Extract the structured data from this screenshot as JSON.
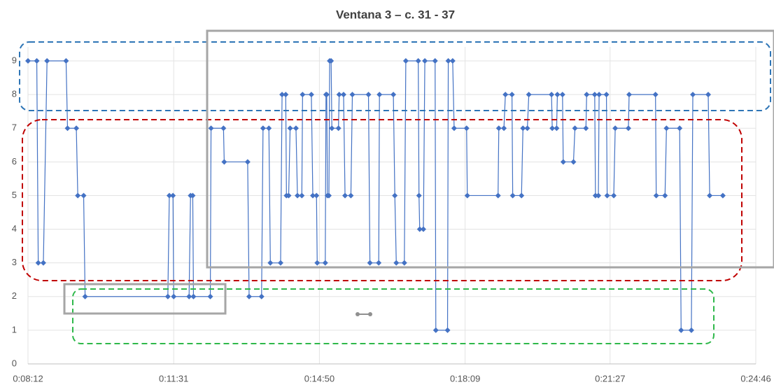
{
  "chart_data": {
    "type": "line",
    "title": "Ventana 3 – c. 31 - 37",
    "color": "#4472c4",
    "x": [
      492,
      504,
      506,
      513,
      518,
      544,
      546,
      558,
      560,
      568,
      570,
      683,
      685,
      690,
      691,
      712,
      714,
      717,
      718,
      741,
      742,
      759,
      760,
      792,
      794,
      811,
      813,
      821,
      823,
      837,
      839,
      844,
      845,
      848,
      850,
      858,
      860,
      866,
      867,
      879,
      881,
      886,
      887,
      898,
      899,
      900,
      901,
      903,
      904,
      906,
      907,
      916,
      917,
      923,
      925,
      933,
      935,
      957,
      959,
      971,
      972,
      991,
      993,
      995,
      1006,
      1008,
      1025,
      1026,
      1027,
      1032,
      1034,
      1048,
      1049,
      1065,
      1066,
      1072,
      1074,
      1091,
      1092,
      1134,
      1135,
      1142,
      1144,
      1153,
      1154,
      1166,
      1168,
      1174,
      1176,
      1207,
      1208,
      1214,
      1215,
      1222,
      1223,
      1237,
      1239,
      1254,
      1255,
      1266,
      1267,
      1271,
      1272,
      1282,
      1283,
      1292,
      1294,
      1312,
      1313,
      1349,
      1350,
      1362,
      1364,
      1382,
      1384,
      1398,
      1400,
      1421,
      1423,
      1441
    ],
    "values": [
      9,
      9,
      3,
      3,
      9,
      9,
      7,
      7,
      5,
      5,
      2,
      2,
      5,
      5,
      2,
      2,
      5,
      5,
      2,
      2,
      7,
      7,
      6,
      6,
      2,
      2,
      7,
      7,
      3,
      3,
      8,
      8,
      5,
      5,
      7,
      7,
      5,
      5,
      8,
      8,
      5,
      5,
      3,
      3,
      8,
      8,
      5,
      5,
      9,
      9,
      7,
      7,
      8,
      8,
      5,
      5,
      8,
      8,
      3,
      3,
      8,
      8,
      5,
      3,
      3,
      9,
      9,
      5,
      4,
      4,
      9,
      9,
      1,
      1,
      9,
      9,
      7,
      7,
      5,
      5,
      7,
      7,
      8,
      8,
      5,
      5,
      7,
      7,
      8,
      8,
      7,
      7,
      8,
      8,
      6,
      6,
      7,
      7,
      8,
      8,
      5,
      5,
      8,
      8,
      5,
      5,
      7,
      7,
      8,
      8,
      5,
      5,
      7,
      7,
      1,
      1,
      8,
      8,
      5,
      5
    ],
    "xlim": [
      492,
      1486
    ],
    "xticks": [
      {
        "value": 492,
        "label": "0:08:12"
      },
      {
        "value": 691,
        "label": "0:11:31"
      },
      {
        "value": 890,
        "label": "0:14:50"
      },
      {
        "value": 1089,
        "label": "0:18:09"
      },
      {
        "value": 1287,
        "label": "0:21:27"
      },
      {
        "value": 1486,
        "label": "0:24:46"
      }
    ],
    "ylim": [
      0,
      9
    ],
    "yticks": [
      0,
      1,
      2,
      3,
      4,
      5,
      6,
      7,
      8,
      9
    ],
    "grid": true
  }
}
